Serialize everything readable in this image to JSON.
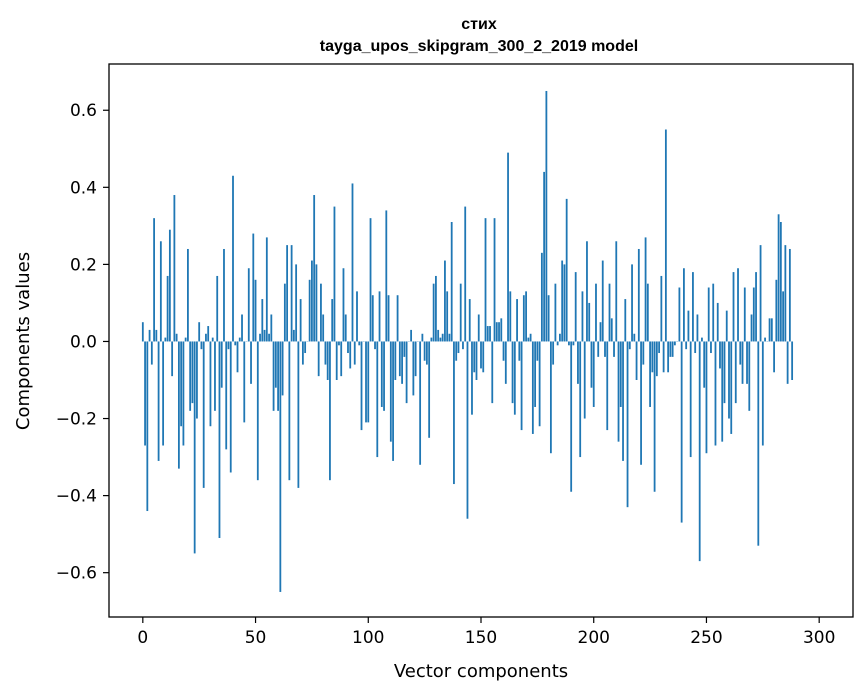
{
  "chart_data": {
    "type": "bar",
    "title": "стих",
    "subtitle": "tayga_upos_skipgram_300_2_2019 model",
    "xlabel": "Vector components",
    "ylabel": "Components values",
    "xlim": [
      -15,
      315
    ],
    "ylim": [
      -0.715,
      0.72
    ],
    "xticks": [
      0,
      50,
      100,
      150,
      200,
      250,
      300
    ],
    "xtick_labels": [
      "0",
      "50",
      "100",
      "150",
      "200",
      "250",
      "300"
    ],
    "yticks": [
      -0.6,
      -0.4,
      -0.2,
      0.0,
      0.2,
      0.4,
      0.6
    ],
    "ytick_labels": [
      "−0.6",
      "−0.4",
      "−0.2",
      "0.0",
      "0.2",
      "0.4",
      "0.6"
    ],
    "color": "#1f77b4",
    "x_start": 0,
    "values": [
      0.05,
      -0.27,
      -0.44,
      0.03,
      -0.06,
      0.32,
      0.03,
      -0.31,
      0.26,
      -0.27,
      0.01,
      0.17,
      0.29,
      -0.09,
      0.38,
      0.02,
      -0.33,
      -0.22,
      -0.27,
      0.01,
      0.24,
      -0.18,
      -0.16,
      -0.55,
      -0.2,
      0.05,
      -0.02,
      -0.38,
      0.02,
      0.04,
      -0.22,
      0.01,
      -0.18,
      0.17,
      -0.51,
      -0.12,
      0.24,
      -0.28,
      -0.02,
      -0.34,
      0.43,
      -0.01,
      -0.08,
      0.01,
      0.07,
      -0.21,
      0.0,
      0.19,
      -0.11,
      0.28,
      0.16,
      -0.36,
      0.02,
      0.11,
      0.03,
      0.27,
      0.02,
      0.07,
      -0.18,
      -0.12,
      -0.18,
      -0.65,
      -0.14,
      0.15,
      0.25,
      -0.36,
      0.25,
      0.03,
      0.2,
      -0.38,
      0.11,
      -0.06,
      -0.03,
      0.0,
      0.16,
      0.21,
      0.38,
      0.2,
      -0.09,
      0.15,
      0.07,
      -0.06,
      -0.1,
      -0.36,
      0.11,
      0.35,
      -0.1,
      -0.01,
      -0.09,
      0.19,
      0.07,
      -0.03,
      -0.07,
      0.41,
      -0.06,
      0.13,
      -0.01,
      -0.23,
      0.0,
      -0.21,
      -0.21,
      0.32,
      0.12,
      -0.02,
      -0.3,
      0.13,
      -0.17,
      -0.18,
      0.34,
      0.12,
      -0.26,
      -0.31,
      -0.1,
      0.12,
      -0.09,
      -0.11,
      -0.04,
      -0.16,
      0.0,
      0.03,
      -0.14,
      -0.09,
      0.0,
      -0.32,
      0.02,
      -0.05,
      -0.06,
      -0.25,
      0.01,
      0.15,
      0.17,
      0.03,
      0.01,
      0.02,
      0.21,
      0.13,
      0.02,
      0.31,
      -0.37,
      -0.05,
      -0.03,
      0.15,
      -0.02,
      0.35,
      -0.46,
      0.11,
      -0.19,
      -0.08,
      -0.1,
      0.07,
      -0.07,
      -0.08,
      0.32,
      0.04,
      0.04,
      -0.16,
      0.32,
      0.05,
      0.05,
      0.06,
      -0.05,
      -0.11,
      0.49,
      0.13,
      -0.16,
      -0.19,
      0.11,
      -0.05,
      -0.23,
      0.12,
      0.13,
      0.01,
      0.02,
      -0.24,
      -0.17,
      -0.05,
      -0.22,
      0.23,
      0.44,
      0.65,
      0.12,
      -0.29,
      -0.06,
      0.15,
      -0.01,
      0.02,
      0.21,
      0.2,
      0.37,
      -0.01,
      -0.39,
      -0.01,
      0.18,
      -0.11,
      -0.3,
      0.13,
      -0.2,
      0.26,
      0.1,
      -0.12,
      -0.17,
      0.15,
      -0.04,
      0.05,
      0.21,
      -0.04,
      -0.23,
      0.15,
      0.06,
      -0.04,
      0.26,
      -0.26,
      -0.17,
      -0.31,
      0.11,
      -0.43,
      -0.02,
      0.2,
      0.02,
      -0.1,
      0.24,
      -0.32,
      -0.06,
      0.27,
      0.15,
      -0.17,
      -0.08,
      -0.39,
      -0.09,
      -0.03,
      0.17,
      -0.08,
      0.55,
      -0.08,
      -0.04,
      -0.04,
      -0.01,
      0.0,
      0.14,
      -0.47,
      0.19,
      -0.02,
      0.08,
      -0.3,
      0.18,
      -0.03,
      0.07,
      -0.57,
      0.01,
      -0.12,
      -0.29,
      0.14,
      -0.03,
      0.15,
      -0.27,
      0.1,
      -0.07,
      -0.26,
      -0.16,
      0.08,
      -0.2,
      -0.24,
      0.18,
      -0.16,
      0.19,
      -0.06,
      -0.11,
      0.14,
      -0.11,
      -0.18,
      0.07,
      0.14,
      0.18,
      -0.53,
      0.25,
      -0.27,
      0.01,
      0.0,
      0.06,
      0.06,
      -0.08,
      0.16,
      0.33,
      0.31,
      0.13,
      0.25,
      -0.11,
      0.24,
      -0.1
    ]
  }
}
